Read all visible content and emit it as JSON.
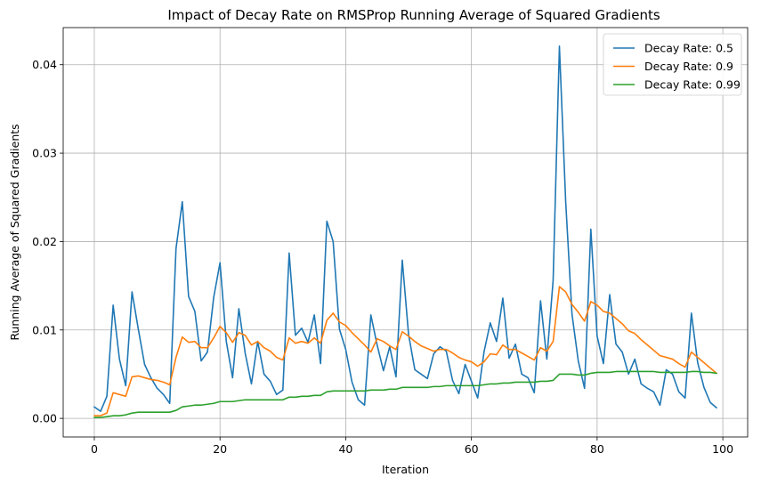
{
  "chart_data": {
    "type": "line",
    "title": "Impact of Decay Rate on RMSProp Running Average of Squared Gradients",
    "xlabel": "Iteration",
    "ylabel": "Running Average of Squared Gradients",
    "xlim": [
      -4.95,
      103.95
    ],
    "ylim": [
      -0.0021,
      0.0442
    ],
    "xticks": [
      0,
      20,
      40,
      60,
      80,
      100
    ],
    "xtick_labels": [
      "0",
      "20",
      "40",
      "60",
      "80",
      "100"
    ],
    "yticks": [
      0.0,
      0.01,
      0.02,
      0.03,
      0.04
    ],
    "ytick_labels": [
      "0.00",
      "0.01",
      "0.02",
      "0.03",
      "0.04"
    ],
    "grid": true,
    "legend_position": "top-right",
    "series": [
      {
        "name": "Decay Rate: 0.5",
        "color": "#1f77b4",
        "values": [
          0.0013,
          0.0008,
          0.0025,
          0.0128,
          0.0067,
          0.0037,
          0.0143,
          0.0101,
          0.0061,
          0.0046,
          0.0034,
          0.0027,
          0.0017,
          0.0192,
          0.0245,
          0.0138,
          0.0121,
          0.0065,
          0.0075,
          0.0137,
          0.0176,
          0.0087,
          0.0046,
          0.0124,
          0.0074,
          0.0039,
          0.0087,
          0.005,
          0.0042,
          0.0027,
          0.0032,
          0.0187,
          0.0094,
          0.0102,
          0.0086,
          0.0117,
          0.0062,
          0.0223,
          0.02,
          0.0101,
          0.0078,
          0.0041,
          0.0021,
          0.0015,
          0.0117,
          0.0083,
          0.0054,
          0.0081,
          0.0047,
          0.0179,
          0.0095,
          0.0055,
          0.005,
          0.0045,
          0.0073,
          0.0081,
          0.0076,
          0.0043,
          0.0028,
          0.0061,
          0.0042,
          0.0023,
          0.0075,
          0.0108,
          0.0087,
          0.0136,
          0.0068,
          0.0084,
          0.005,
          0.0046,
          0.0029,
          0.0133,
          0.0067,
          0.0156,
          0.0421,
          0.0245,
          0.0118,
          0.0065,
          0.0034,
          0.0214,
          0.0093,
          0.0062,
          0.014,
          0.0084,
          0.0075,
          0.005,
          0.0067,
          0.0039,
          0.0034,
          0.003,
          0.0015,
          0.0055,
          0.005,
          0.003,
          0.0023,
          0.0119,
          0.0063,
          0.0035,
          0.0018,
          0.0012
        ]
      },
      {
        "name": "Decay Rate: 0.9",
        "color": "#ff7f0e",
        "values": [
          0.0003,
          0.0003,
          0.0006,
          0.0029,
          0.0027,
          0.0025,
          0.0047,
          0.0048,
          0.0046,
          0.0044,
          0.0043,
          0.0041,
          0.0038,
          0.0069,
          0.0092,
          0.0086,
          0.0087,
          0.008,
          0.008,
          0.0091,
          0.0104,
          0.0097,
          0.0086,
          0.0097,
          0.0094,
          0.0083,
          0.0087,
          0.008,
          0.0076,
          0.0069,
          0.0066,
          0.0091,
          0.0085,
          0.0087,
          0.0085,
          0.0091,
          0.0085,
          0.0111,
          0.0119,
          0.0109,
          0.0105,
          0.0097,
          0.009,
          0.0083,
          0.0075,
          0.009,
          0.0087,
          0.0082,
          0.0078,
          0.0098,
          0.0093,
          0.0087,
          0.0082,
          0.0079,
          0.0076,
          0.0078,
          0.0078,
          0.0074,
          0.0069,
          0.0066,
          0.0064,
          0.0059,
          0.0064,
          0.0073,
          0.0072,
          0.0083,
          0.0078,
          0.0078,
          0.0074,
          0.007,
          0.0066,
          0.008,
          0.0076,
          0.0087,
          0.0149,
          0.0143,
          0.0129,
          0.012,
          0.011,
          0.0132,
          0.0128,
          0.0121,
          0.0119,
          0.0113,
          0.0107,
          0.0099,
          0.0096,
          0.0089,
          0.0083,
          0.0077,
          0.0071,
          0.0069,
          0.0067,
          0.0062,
          0.0058,
          0.0075,
          0.0069,
          0.0063,
          0.0057,
          0.0051
        ]
      },
      {
        "name": "Decay Rate: 0.99",
        "color": "#2ca02c",
        "values": [
          0.0001,
          0.0001,
          0.0002,
          0.0003,
          0.0003,
          0.0004,
          0.0006,
          0.0007,
          0.0007,
          0.0007,
          0.0007,
          0.0007,
          0.0007,
          0.0009,
          0.0013,
          0.0014,
          0.0015,
          0.0015,
          0.0016,
          0.0017,
          0.0019,
          0.0019,
          0.0019,
          0.002,
          0.0021,
          0.0021,
          0.0021,
          0.0021,
          0.0021,
          0.0021,
          0.0021,
          0.0024,
          0.0024,
          0.0025,
          0.0025,
          0.0026,
          0.0026,
          0.003,
          0.0031,
          0.0031,
          0.0031,
          0.0031,
          0.0031,
          0.0031,
          0.0032,
          0.0032,
          0.0032,
          0.0033,
          0.0033,
          0.0035,
          0.0035,
          0.0035,
          0.0035,
          0.0035,
          0.0036,
          0.0036,
          0.0037,
          0.0037,
          0.0037,
          0.0037,
          0.0037,
          0.0037,
          0.0038,
          0.0039,
          0.0039,
          0.004,
          0.004,
          0.0041,
          0.0041,
          0.0041,
          0.0041,
          0.0042,
          0.0042,
          0.0043,
          0.005,
          0.005,
          0.005,
          0.0049,
          0.0049,
          0.0051,
          0.0052,
          0.0052,
          0.0052,
          0.0053,
          0.0053,
          0.0053,
          0.0053,
          0.0053,
          0.0053,
          0.0053,
          0.0052,
          0.0052,
          0.0052,
          0.0052,
          0.0052,
          0.0053,
          0.0053,
          0.0052,
          0.0052,
          0.0051
        ]
      }
    ]
  }
}
